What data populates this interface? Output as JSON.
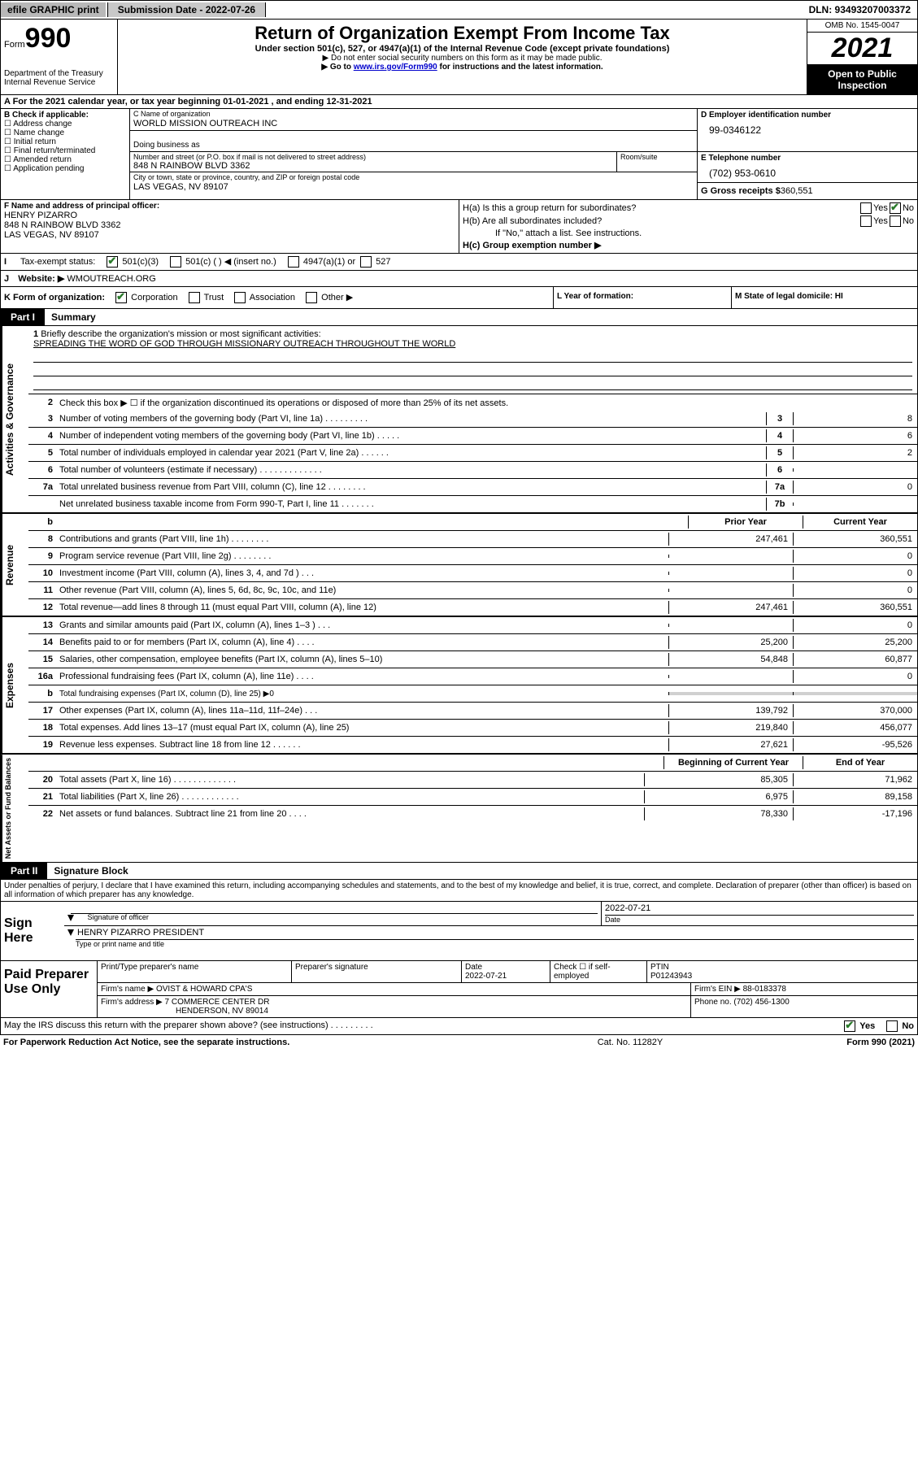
{
  "topbar": {
    "efile": "efile GRAPHIC print",
    "submission_label": "Submission Date - 2022-07-26",
    "dln": "DLN: 93493207003372"
  },
  "header": {
    "form_prefix": "Form",
    "form_number": "990",
    "dept1": "Department of the Treasury",
    "dept2": "Internal Revenue Service",
    "title": "Return of Organization Exempt From Income Tax",
    "sub": "Under section 501(c), 527, or 4947(a)(1) of the Internal Revenue Code (except private foundations)",
    "line1": "▶ Do not enter social security numbers on this form as it may be made public.",
    "line2_pre": "▶ Go to ",
    "line2_link": "www.irs.gov/Form990",
    "line2_post": " for instructions and the latest information.",
    "omb": "OMB No. 1545-0047",
    "year": "2021",
    "inspect1": "Open to Public",
    "inspect2": "Inspection"
  },
  "line_a": "A For the 2021 calendar year, or tax year beginning 01-01-2021   , and ending 12-31-2021",
  "b": {
    "hdr": "B Check if applicable:",
    "opts": [
      "Address change",
      "Name change",
      "Initial return",
      "Final return/terminated",
      "Amended return",
      "Application pending"
    ]
  },
  "c": {
    "name_lbl": "C Name of organization",
    "name": "WORLD MISSION OUTREACH INC",
    "dba_lbl": "Doing business as",
    "addr_lbl": "Number and street (or P.O. box if mail is not delivered to street address)",
    "room_lbl": "Room/suite",
    "addr": "848 N RAINBOW BLVD 3362",
    "city_lbl": "City or town, state or province, country, and ZIP or foreign postal code",
    "city": "LAS VEGAS, NV  89107"
  },
  "d": {
    "lbl": "D Employer identification number",
    "val": "99-0346122"
  },
  "e": {
    "lbl": "E Telephone number",
    "val": "(702) 953-0610",
    "gr_lbl": "G Gross receipts $",
    "gr_val": "360,551"
  },
  "f": {
    "lbl": "F Name and address of principal officer:",
    "name": "HENRY PIZARRO",
    "addr": "848 N RAINBOW BLVD 3362",
    "city": "LAS VEGAS, NV  89107"
  },
  "h": {
    "a": "H(a)  Is this a group return for subordinates?",
    "b": "H(b)  Are all subordinates included?",
    "b2": "If \"No,\" attach a list. See instructions.",
    "c": "H(c)  Group exemption number ▶"
  },
  "i": {
    "lbl": "Tax-exempt status:",
    "o1": "501(c)(3)",
    "o2": "501(c) (  ) ◀ (insert no.)",
    "o3": "4947(a)(1) or",
    "o4": "527"
  },
  "j": {
    "lbl": "Website: ▶",
    "val": "WMOUTREACH.ORG"
  },
  "k": {
    "lbl": "K Form of organization:",
    "o1": "Corporation",
    "o2": "Trust",
    "o3": "Association",
    "o4": "Other ▶"
  },
  "l": {
    "lbl": "L Year of formation:"
  },
  "m": {
    "lbl": "M State of legal domicile: HI"
  },
  "part1": {
    "num": "Part I",
    "title": "Summary"
  },
  "vlabels": {
    "ag": "Activities & Governance",
    "rev": "Revenue",
    "exp": "Expenses",
    "na": "Net Assets or Fund Balances"
  },
  "mission": {
    "n": "1",
    "lbl": "Briefly describe the organization's mission or most significant activities:",
    "text": "SPREADING THE WORD OF GOD THROUGH MISSIONARY OUTREACH THROUGHOUT THE WORLD"
  },
  "rows_ag": [
    {
      "n": "2",
      "d": "Check this box ▶ ☐ if the organization discontinued its operations or disposed of more than 25% of its net assets."
    },
    {
      "n": "3",
      "d": "Number of voting members of the governing body (Part VI, line 1a)   .    .    .    .    .    .    .    .    .",
      "bx": "3",
      "v": "8"
    },
    {
      "n": "4",
      "d": "Number of independent voting members of the governing body (Part VI, line 1b)   .    .    .    .    .",
      "bx": "4",
      "v": "6"
    },
    {
      "n": "5",
      "d": "Total number of individuals employed in calendar year 2021 (Part V, line 2a)   .    .    .    .    .    .",
      "bx": "5",
      "v": "2"
    },
    {
      "n": "6",
      "d": "Total number of volunteers (estimate if necessary)   .    .    .    .    .    .    .    .    .    .    .    .    .",
      "bx": "6",
      "v": ""
    },
    {
      "n": "7a",
      "d": "Total unrelated business revenue from Part VIII, column (C), line 12   .    .    .    .    .    .    .    .",
      "bx": "7a",
      "v": "0"
    },
    {
      "n": "",
      "d": "Net unrelated business taxable income from Form 990-T, Part I, line 11   .    .    .    .    .    .    .",
      "bx": "7b",
      "v": ""
    }
  ],
  "col_hdrs": {
    "b": "b",
    "py": "Prior Year",
    "cy": "Current Year"
  },
  "rows_rev": [
    {
      "n": "8",
      "d": "Contributions and grants (Part VIII, line 1h)   .    .    .    .    .    .    .    .",
      "py": "247,461",
      "cy": "360,551"
    },
    {
      "n": "9",
      "d": "Program service revenue (Part VIII, line 2g)   .    .    .    .    .    .    .    .",
      "py": "",
      "cy": "0"
    },
    {
      "n": "10",
      "d": "Investment income (Part VIII, column (A), lines 3, 4, and 7d )   .    .    .",
      "py": "",
      "cy": "0"
    },
    {
      "n": "11",
      "d": "Other revenue (Part VIII, column (A), lines 5, 6d, 8c, 9c, 10c, and 11e)",
      "py": "",
      "cy": "0"
    },
    {
      "n": "12",
      "d": "Total revenue—add lines 8 through 11 (must equal Part VIII, column (A), line 12)",
      "py": "247,461",
      "cy": "360,551"
    }
  ],
  "rows_exp": [
    {
      "n": "13",
      "d": "Grants and similar amounts paid (Part IX, column (A), lines 1–3 )   .    .    .",
      "py": "",
      "cy": "0"
    },
    {
      "n": "14",
      "d": "Benefits paid to or for members (Part IX, column (A), line 4)   .    .    .    .",
      "py": "25,200",
      "cy": "25,200"
    },
    {
      "n": "15",
      "d": "Salaries, other compensation, employee benefits (Part IX, column (A), lines 5–10)",
      "py": "54,848",
      "cy": "60,877"
    },
    {
      "n": "16a",
      "d": "Professional fundraising fees (Part IX, column (A), line 11e)   .    .    .    .",
      "py": "",
      "cy": "0"
    },
    {
      "n": "b",
      "d": "Total fundraising expenses (Part IX, column (D), line 25) ▶0",
      "shade": true
    },
    {
      "n": "17",
      "d": "Other expenses (Part IX, column (A), lines 11a–11d, 11f–24e)   .    .    .",
      "py": "139,792",
      "cy": "370,000"
    },
    {
      "n": "18",
      "d": "Total expenses. Add lines 13–17 (must equal Part IX, column (A), line 25)",
      "py": "219,840",
      "cy": "456,077"
    },
    {
      "n": "19",
      "d": "Revenue less expenses. Subtract line 18 from line 12   .    .    .    .    .    .",
      "py": "27,621",
      "cy": "-95,526"
    }
  ],
  "col_hdrs2": {
    "py": "Beginning of Current Year",
    "cy": "End of Year"
  },
  "rows_na": [
    {
      "n": "20",
      "d": "Total assets (Part X, line 16)   .    .    .    .    .    .    .    .    .    .    .    .    .",
      "py": "85,305",
      "cy": "71,962"
    },
    {
      "n": "21",
      "d": "Total liabilities (Part X, line 26)   .    .    .    .    .    .    .    .    .    .    .    .",
      "py": "6,975",
      "cy": "89,158"
    },
    {
      "n": "22",
      "d": "Net assets or fund balances. Subtract line 21 from line 20   .    .    .    .",
      "py": "78,330",
      "cy": "-17,196"
    }
  ],
  "part2": {
    "num": "Part II",
    "title": "Signature Block"
  },
  "sig_decl": "Under penalties of perjury, I declare that I have examined this return, including accompanying schedules and statements, and to the best of my knowledge and belief, it is true, correct, and complete. Declaration of preparer (other than officer) is based on all information of which preparer has any knowledge.",
  "sign": {
    "left": "Sign Here",
    "so": "Signature of officer",
    "date_val": "2022-07-21",
    "date_lbl": "Date",
    "name": "HENRY PIZARRO  PRESIDENT",
    "name_lbl": "Type or print name and title"
  },
  "prep": {
    "left": "Paid Preparer Use Only",
    "h1": "Print/Type preparer's name",
    "h2": "Preparer's signature",
    "h3_lbl": "Date",
    "h3": "2022-07-21",
    "h4": "Check ☐ if self-employed",
    "h5_lbl": "PTIN",
    "h5": "P01243943",
    "firm_lbl": "Firm's name    ▶",
    "firm": "OVIST & HOWARD CPA'S",
    "ein_lbl": "Firm's EIN ▶",
    "ein": "88-0183378",
    "addr_lbl": "Firm's address ▶",
    "addr1": "7 COMMERCE CENTER DR",
    "addr2": "HENDERSON, NV  89014",
    "phone_lbl": "Phone no.",
    "phone": "(702) 456-1300"
  },
  "footer": {
    "q": "May the IRS discuss this return with the preparer shown above? (see instructions)   .    .    .    .    .    .    .    .    .",
    "yes": "Yes",
    "no": "No"
  },
  "bottom": {
    "b1": "For Paperwork Reduction Act Notice, see the separate instructions.",
    "b2": "Cat. No. 11282Y",
    "b3": "Form 990 (2021)"
  }
}
